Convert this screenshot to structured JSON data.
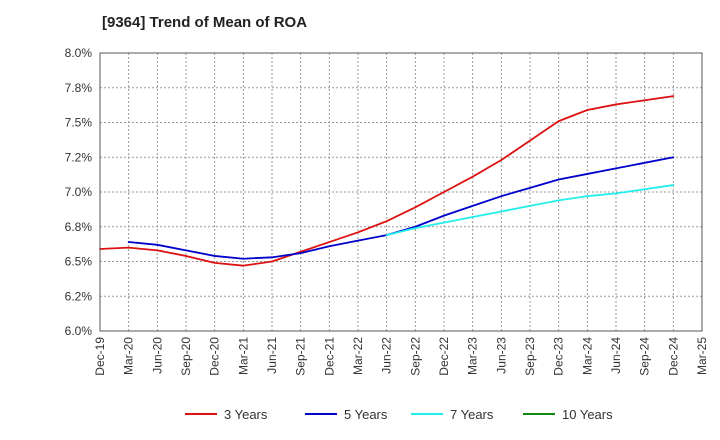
{
  "chart_data": {
    "type": "line",
    "title": "[9364]  Trend of Mean of ROA",
    "xlabel": "",
    "ylabel": "",
    "x": [
      "Dec-19",
      "Mar-20",
      "Jun-20",
      "Sep-20",
      "Dec-20",
      "Mar-21",
      "Jun-21",
      "Sep-21",
      "Dec-21",
      "Mar-22",
      "Jun-22",
      "Sep-22",
      "Dec-22",
      "Mar-23",
      "Jun-23",
      "Sep-23",
      "Dec-23",
      "Mar-24",
      "Jun-24",
      "Sep-24",
      "Dec-24",
      "Mar-25"
    ],
    "ylim": [
      6.0,
      8.0
    ],
    "yticks": [
      6.0,
      6.25,
      6.5,
      6.75,
      7.0,
      7.25,
      7.5,
      7.75,
      8.0
    ],
    "ytick_labels": [
      "6.0%",
      "6.2%",
      "6.5%",
      "6.8%",
      "7.0%",
      "7.2%",
      "7.5%",
      "7.8%",
      "8.0%"
    ],
    "grid": true,
    "legend_position": "bottom",
    "series": [
      {
        "name": "3 Years",
        "color": "#dd1111",
        "values": [
          6.59,
          6.6,
          6.58,
          6.54,
          6.49,
          6.47,
          6.5,
          6.57,
          6.64,
          6.71,
          6.79,
          6.89,
          7.0,
          7.11,
          7.23,
          7.37,
          7.51,
          7.59,
          7.63,
          7.66,
          7.69,
          null
        ]
      },
      {
        "name": "5 Years",
        "color": "#0000cc",
        "values": [
          null,
          6.64,
          6.62,
          6.58,
          6.54,
          6.52,
          6.53,
          6.56,
          6.61,
          6.65,
          6.69,
          6.75,
          6.83,
          6.9,
          6.97,
          7.03,
          7.09,
          7.13,
          7.17,
          7.21,
          7.25,
          null
        ]
      },
      {
        "name": "7 Years",
        "color": "#22eeee",
        "values": [
          null,
          null,
          null,
          null,
          null,
          null,
          null,
          null,
          null,
          null,
          6.69,
          6.74,
          6.78,
          6.82,
          6.86,
          6.9,
          6.94,
          6.97,
          6.99,
          7.02,
          7.05,
          null
        ]
      },
      {
        "name": "10 Years",
        "color": "#118811",
        "values": [
          null,
          null,
          null,
          null,
          null,
          null,
          null,
          null,
          null,
          null,
          null,
          null,
          null,
          null,
          null,
          null,
          null,
          null,
          null,
          null,
          null,
          null
        ]
      }
    ]
  }
}
